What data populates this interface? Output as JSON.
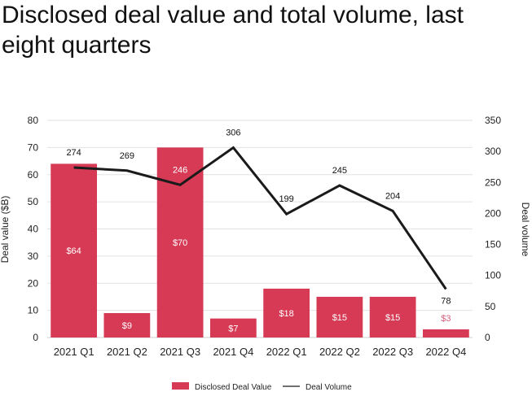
{
  "chart_data": {
    "type": "bar",
    "title": "Disclosed deal value and total volume, last eight quarters",
    "categories": [
      "2021 Q1",
      "2021 Q2",
      "2021 Q3",
      "2021 Q4",
      "2022 Q1",
      "2022 Q2",
      "2022 Q3",
      "2022 Q4"
    ],
    "series": [
      {
        "name": "Disclosed Deal Value",
        "type": "bar",
        "axis": "left",
        "color": "#D63A55",
        "values": [
          64,
          9,
          70,
          7,
          18,
          15,
          15,
          3
        ],
        "labels": [
          "$64",
          "$9",
          "$70",
          "$7",
          "$18",
          "$15",
          "$15",
          "$3"
        ]
      },
      {
        "name": "Deal Volume",
        "type": "line",
        "axis": "right",
        "color": "#1a1a1a",
        "values": [
          274,
          269,
          246,
          306,
          199,
          245,
          204,
          78
        ],
        "labels": [
          "274",
          "269",
          "246",
          "306",
          "199",
          "245",
          "204",
          "78"
        ]
      }
    ],
    "ylabel": "Deal value ($B)",
    "y2label": "Deal volume",
    "xlabel": "",
    "ylim": [
      0,
      80
    ],
    "y2lim": [
      0,
      350
    ],
    "yticks": [
      0,
      10,
      20,
      30,
      40,
      50,
      60,
      70,
      80
    ],
    "y2ticks": [
      0,
      50,
      100,
      150,
      200,
      250,
      300,
      350
    ],
    "grid": true,
    "legend": {
      "position": "bottom-center",
      "entries": [
        "Disclosed Deal Value",
        "Deal Volume"
      ]
    }
  }
}
